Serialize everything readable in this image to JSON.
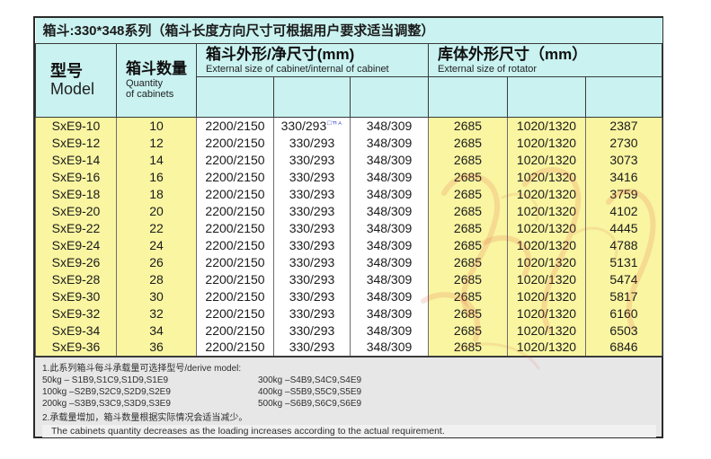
{
  "title": "箱斗:330*348系列（箱斗长度方向尺寸可根据用户要求适当调整）",
  "header": {
    "model_zh": "型号",
    "model_en": "Model",
    "quantity_zh": "箱斗数量",
    "quantity_en1": "Quantity",
    "quantity_en2": "of cabinets",
    "group_cabinet_zh": "箱斗外形/净尺寸(mm)",
    "group_cabinet_en": "External size of cabinet/internal of cabinet",
    "group_rotator_zh": "库体外形尺寸（mm）",
    "group_rotator_en": "External size of rotator"
  },
  "annotation": {
    "text": "□ㄲㅅ",
    "color": "#2233cc"
  },
  "rows": [
    {
      "model": "SxE9-10",
      "quantity": "10",
      "c1": "2200/2150",
      "c2": "330/293",
      "c3": "348/309",
      "r1": "2685",
      "r2": "1020/1320",
      "r3": "2387"
    },
    {
      "model": "SxE9-12",
      "quantity": "12",
      "c1": "2200/2150",
      "c2": "330/293",
      "c3": "348/309",
      "r1": "2685",
      "r2": "1020/1320",
      "r3": "2730"
    },
    {
      "model": "SxE9-14",
      "quantity": "14",
      "c1": "2200/2150",
      "c2": "330/293",
      "c3": "348/309",
      "r1": "2685",
      "r2": "1020/1320",
      "r3": "3073"
    },
    {
      "model": "SxE9-16",
      "quantity": "16",
      "c1": "2200/2150",
      "c2": "330/293",
      "c3": "348/309",
      "r1": "2685",
      "r2": "1020/1320",
      "r3": "3416"
    },
    {
      "model": "SxE9-18",
      "quantity": "18",
      "c1": "2200/2150",
      "c2": "330/293",
      "c3": "348/309",
      "r1": "2685",
      "r2": "1020/1320",
      "r3": "3759"
    },
    {
      "model": "SxE9-20",
      "quantity": "20",
      "c1": "2200/2150",
      "c2": "330/293",
      "c3": "348/309",
      "r1": "2685",
      "r2": "1020/1320",
      "r3": "4102"
    },
    {
      "model": "SxE9-22",
      "quantity": "22",
      "c1": "2200/2150",
      "c2": "330/293",
      "c3": "348/309",
      "r1": "2685",
      "r2": "1020/1320",
      "r3": "4445"
    },
    {
      "model": "SxE9-24",
      "quantity": "24",
      "c1": "2200/2150",
      "c2": "330/293",
      "c3": "348/309",
      "r1": "2685",
      "r2": "1020/1320",
      "r3": "4788"
    },
    {
      "model": "SxE9-26",
      "quantity": "26",
      "c1": "2200/2150",
      "c2": "330/293",
      "c3": "348/309",
      "r1": "2685",
      "r2": "1020/1320",
      "r3": "5131"
    },
    {
      "model": "SxE9-28",
      "quantity": "28",
      "c1": "2200/2150",
      "c2": "330/293",
      "c3": "348/309",
      "r1": "2685",
      "r2": "1020/1320",
      "r3": "5474"
    },
    {
      "model": "SxE9-30",
      "quantity": "30",
      "c1": "2200/2150",
      "c2": "330/293",
      "c3": "348/309",
      "r1": "2685",
      "r2": "1020/1320",
      "r3": "5817"
    },
    {
      "model": "SxE9-32",
      "quantity": "32",
      "c1": "2200/2150",
      "c2": "330/293",
      "c3": "348/309",
      "r1": "2685",
      "r2": "1020/1320",
      "r3": "6160"
    },
    {
      "model": "SxE9-34",
      "quantity": "34",
      "c1": "2200/2150",
      "c2": "330/293",
      "c3": "348/309",
      "r1": "2685",
      "r2": "1020/1320",
      "r3": "6503"
    },
    {
      "model": "SxE9-36",
      "quantity": "36",
      "c1": "2200/2150",
      "c2": "330/293",
      "c3": "348/309",
      "r1": "2685",
      "r2": "1020/1320",
      "r3": "6846"
    }
  ],
  "notes": {
    "note1_title": "1.此系列箱斗每斗承载量可选择型号/derive model:",
    "note1_left": [
      "50kg – S1B9,S1C9,S1D9,S1E9",
      "100kg –S2B9,S2C9,S2D9,S2E9",
      "200kg –S3B9,S3C9,S3D9,S3E9"
    ],
    "note1_right": [
      "300kg –S4B9,S4C9,S4E9",
      "400kg –S5B9,S5C9,S5E9",
      "500kg –S6B9,S6C9,S6E9"
    ],
    "note2_zh": "2.承载量增加，箱斗数量根据实际情况会适当减少。",
    "note2_en": "The cabinets quantity decreases as the loading increases according to the actual requirement."
  },
  "colors": {
    "header_bg": "#c9f2f0",
    "row_yellow_bg": "#f9f5a1",
    "notes_bg": "#e7e7e7",
    "border": "#3a3a3a",
    "watermark_red": "#e25b40",
    "annotation_blue": "#2233cc"
  }
}
